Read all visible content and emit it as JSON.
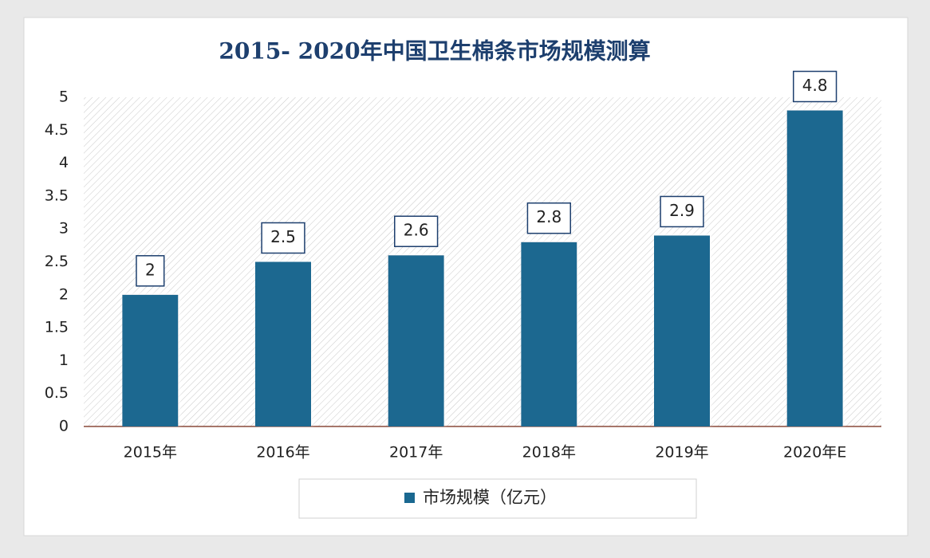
{
  "chart_data": {
    "type": "bar",
    "title": "2015- 2020年中国卫生棉条市场规模测算",
    "categories": [
      "2015年",
      "2016年",
      "2017年",
      "2018年",
      "2019年",
      "2020年E"
    ],
    "series": [
      {
        "name": "市场规模（亿元）",
        "color": "#1a6890",
        "values": [
          2,
          2.5,
          2.6,
          2.8,
          2.9,
          4.8
        ]
      }
    ],
    "ylim": [
      0,
      5
    ],
    "yticks": [
      0,
      0.5,
      1,
      1.5,
      2,
      2.5,
      3,
      3.5,
      4,
      4.5,
      5
    ],
    "legend": "bottom"
  }
}
